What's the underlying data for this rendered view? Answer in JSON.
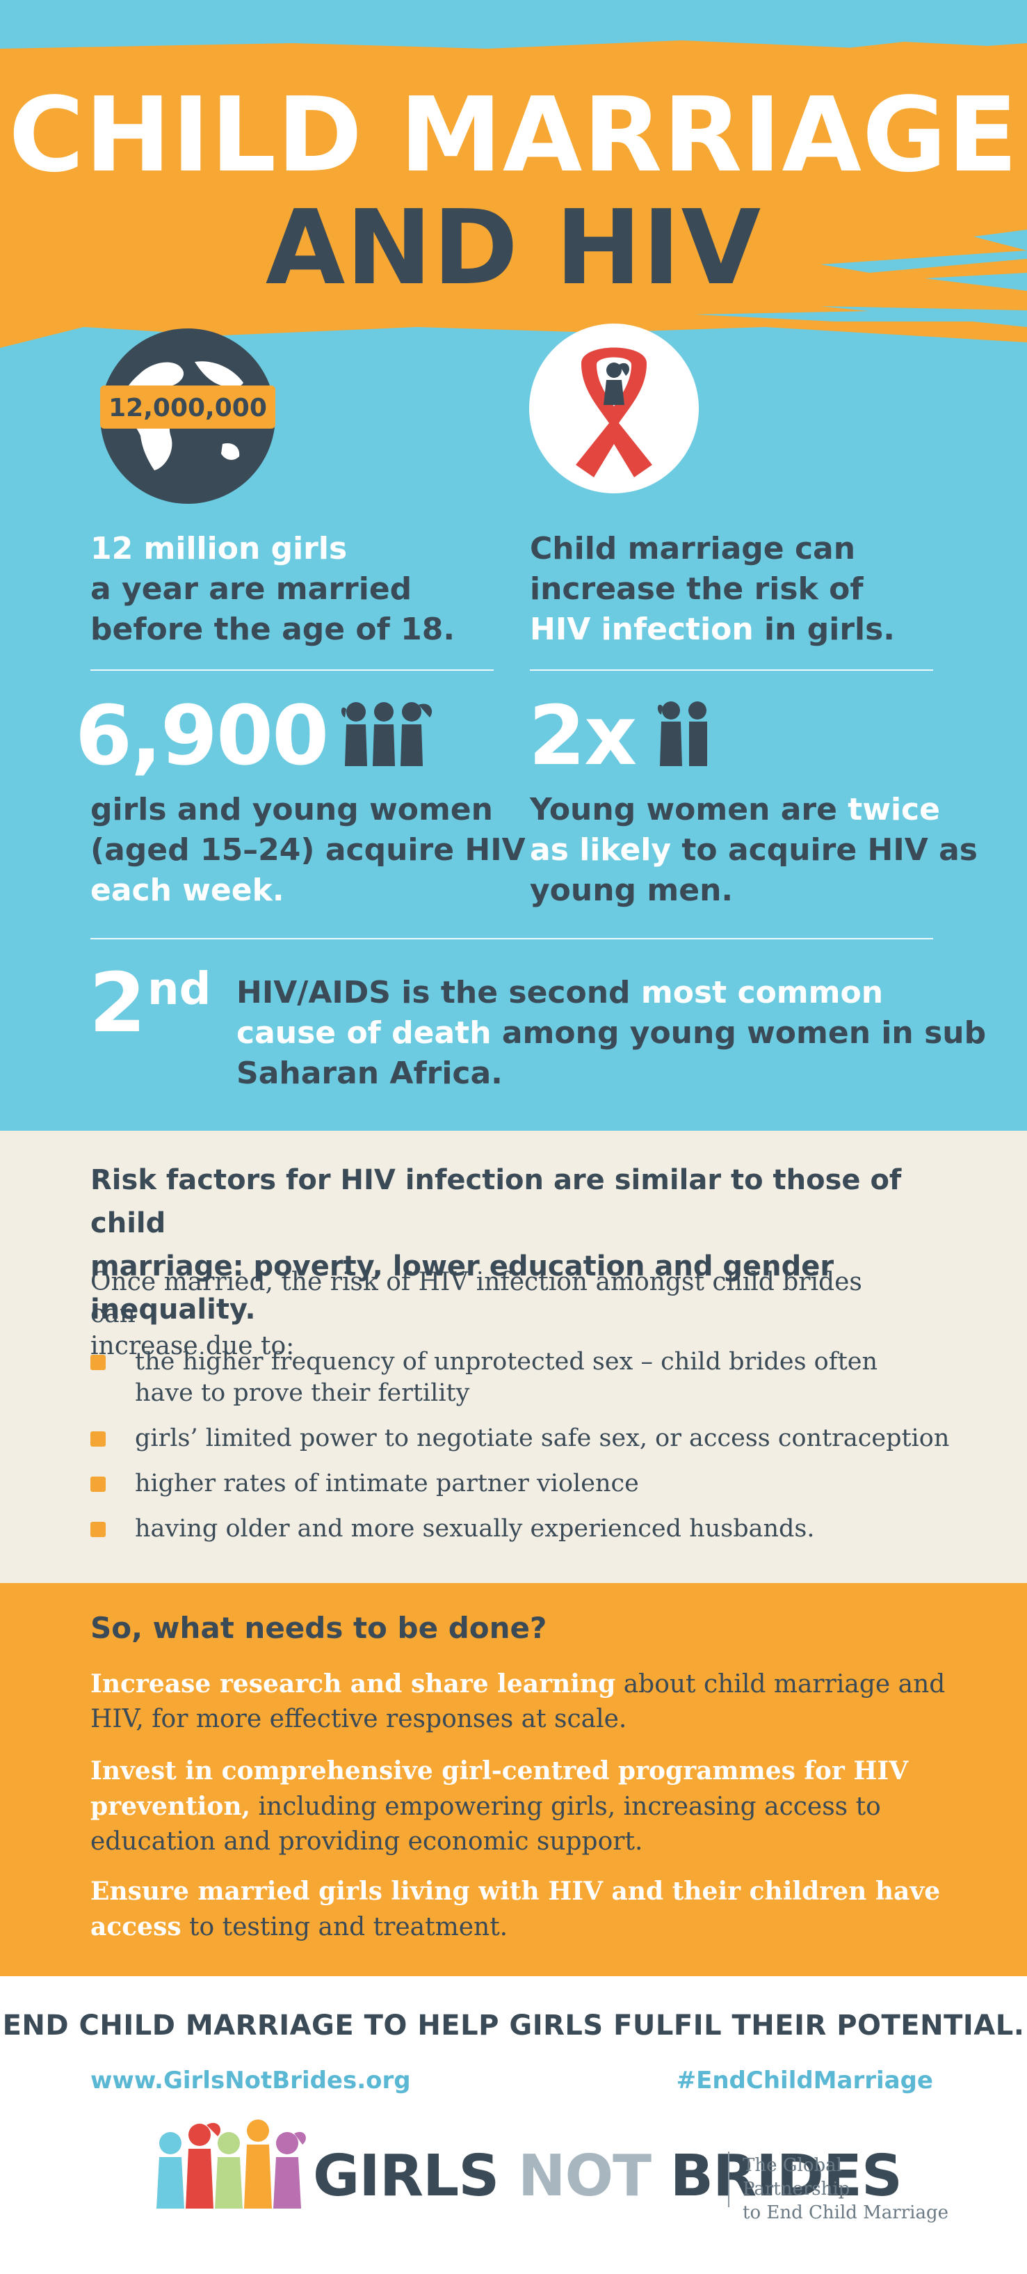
{
  "title": {
    "line1": "CHILD MARRIAGE",
    "line2": "AND HIV"
  },
  "globe": {
    "banner": "12,000,000"
  },
  "stat1": {
    "line1": "12 million girls",
    "line2": "a year are married",
    "line3": "before the age of 18."
  },
  "stat2": {
    "line1": "Child marriage can",
    "line2": "increase the risk of",
    "line3_highlight": "HIV infection",
    "line3_rest": " in girls."
  },
  "stat3": {
    "number": "6,900",
    "line1": "girls and young women",
    "line2": "(aged 15–24) acquire HIV",
    "line3": "each week."
  },
  "stat4": {
    "number": "2x",
    "line1_a": "Young women are ",
    "line1_b": "twice",
    "line2_a": "as likely",
    "line2_b": " to acquire HIV as",
    "line3": "young men."
  },
  "stat5": {
    "number": "2",
    "ordinal": "nd",
    "line1_a": "HIV/AIDS is the second ",
    "line1_b": "most common",
    "line2_a": "cause of death",
    "line2_b": " among young women in sub",
    "line3": "Saharan Africa."
  },
  "risk": {
    "heading_line1": "Risk factors for HIV infection are similar to those of child",
    "heading_line2": "marriage: poverty, lower education and gender inequality.",
    "intro_line1": "Once married, the risk of HIV infection amongst child brides can",
    "intro_line2": "increase due to:",
    "bullets": [
      {
        "line1": "the higher frequency of unprotected sex – child brides often",
        "line2": "have to prove their fertility"
      },
      {
        "line1": "girls’ limited power to negotiate safe sex, or access contraception",
        "line2": ""
      },
      {
        "line1": "higher rates of intimate partner violence",
        "line2": ""
      },
      {
        "line1": "having older and more sexually experienced husbands.",
        "line2": ""
      }
    ]
  },
  "actions": {
    "heading": "So, what needs to be done?",
    "items": [
      {
        "lead": "Increase research and share learning",
        "rest": " about child marriage and HIV, for more effective responses at scale."
      },
      {
        "lead": "Invest in comprehensive girl-centred programmes for HIV prevention,",
        "rest": " including  empowering  girls, increasing access to education and providing economic support."
      },
      {
        "lead": "Ensure married girls living with HIV and their children have access",
        "rest": " to testing and treatment."
      }
    ]
  },
  "footer": {
    "tagline": "END CHILD MARRIAGE TO HELP GIRLS FULFIL THEIR POTENTIAL.",
    "url": "www.GirlsNotBrides.org",
    "hashtag": "#EndChildMarriage",
    "logo_w1": "GIRLS ",
    "logo_w2": "NOT ",
    "logo_w3": "BRIDES",
    "logo_tag_line1": "The Global Partnership",
    "logo_tag_line2": "to End Child Marriage"
  },
  "colors": {
    "sky": "#6ccbe0",
    "orange": "#f7a733",
    "dark": "#3a4a56",
    "cream": "#f2eee4",
    "ribbon": "#e2463f",
    "link": "#5ab8d4"
  }
}
